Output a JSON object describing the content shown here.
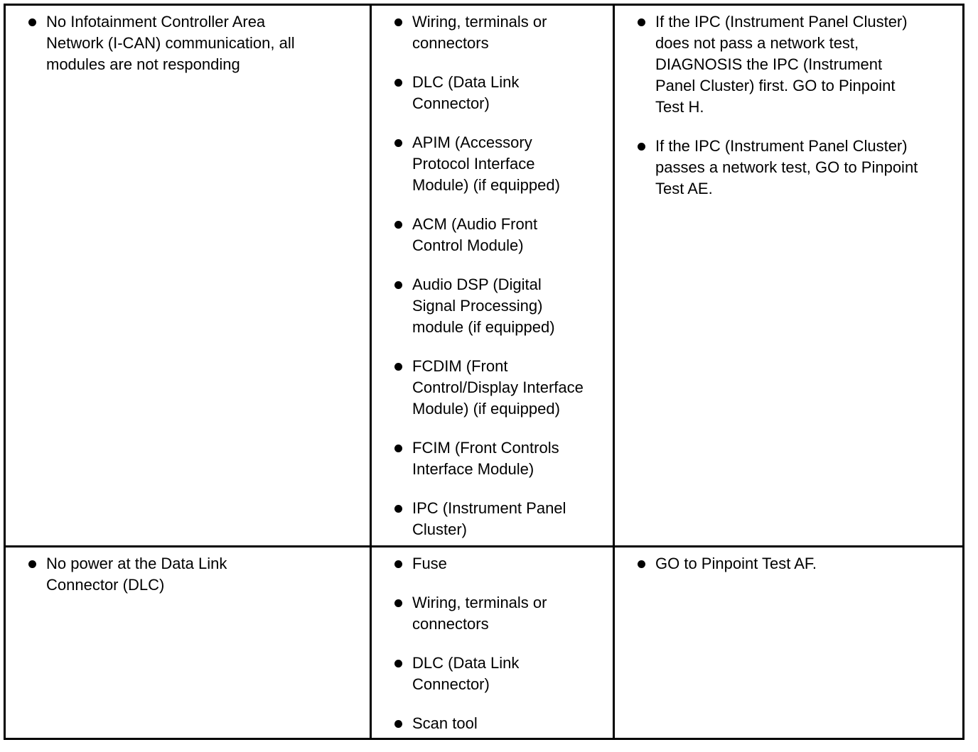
{
  "rows": [
    {
      "condition": [
        [
          "No Infotainment Controller Area",
          "Network (I-CAN) communication, all",
          "modules are not responding"
        ]
      ],
      "possible_sources": [
        [
          "Wiring, terminals or",
          "connectors"
        ],
        [
          "DLC (Data Link",
          "Connector)"
        ],
        [
          "APIM (Accessory",
          "Protocol Interface",
          "Module) (if equipped)"
        ],
        [
          "ACM (Audio Front",
          "Control Module)"
        ],
        [
          "Audio DSP (Digital",
          "Signal Processing)",
          "module (if equipped)"
        ],
        [
          "FCDIM (Front",
          "Control/Display Interface",
          "Module) (if equipped)"
        ],
        [
          "FCIM (Front Controls",
          "Interface Module)"
        ],
        [
          "IPC (Instrument Panel",
          "Cluster)"
        ]
      ],
      "actions": [
        [
          "If the IPC (Instrument Panel Cluster)",
          "does not pass a network test,",
          "DIAGNOSIS the IPC (Instrument",
          "Panel Cluster) first. GO to Pinpoint",
          "Test H."
        ],
        [
          "If the IPC (Instrument Panel Cluster)",
          "passes a network test, GO to Pinpoint",
          "Test AE."
        ]
      ]
    },
    {
      "condition": [
        [
          "No power at the Data Link",
          "Connector (DLC)"
        ]
      ],
      "possible_sources": [
        [
          "Fuse"
        ],
        [
          "Wiring, terminals or",
          "connectors"
        ],
        [
          "DLC (Data Link",
          "Connector)"
        ],
        [
          "Scan tool"
        ]
      ],
      "actions": [
        [
          "GO to Pinpoint Test AF."
        ]
      ]
    }
  ]
}
